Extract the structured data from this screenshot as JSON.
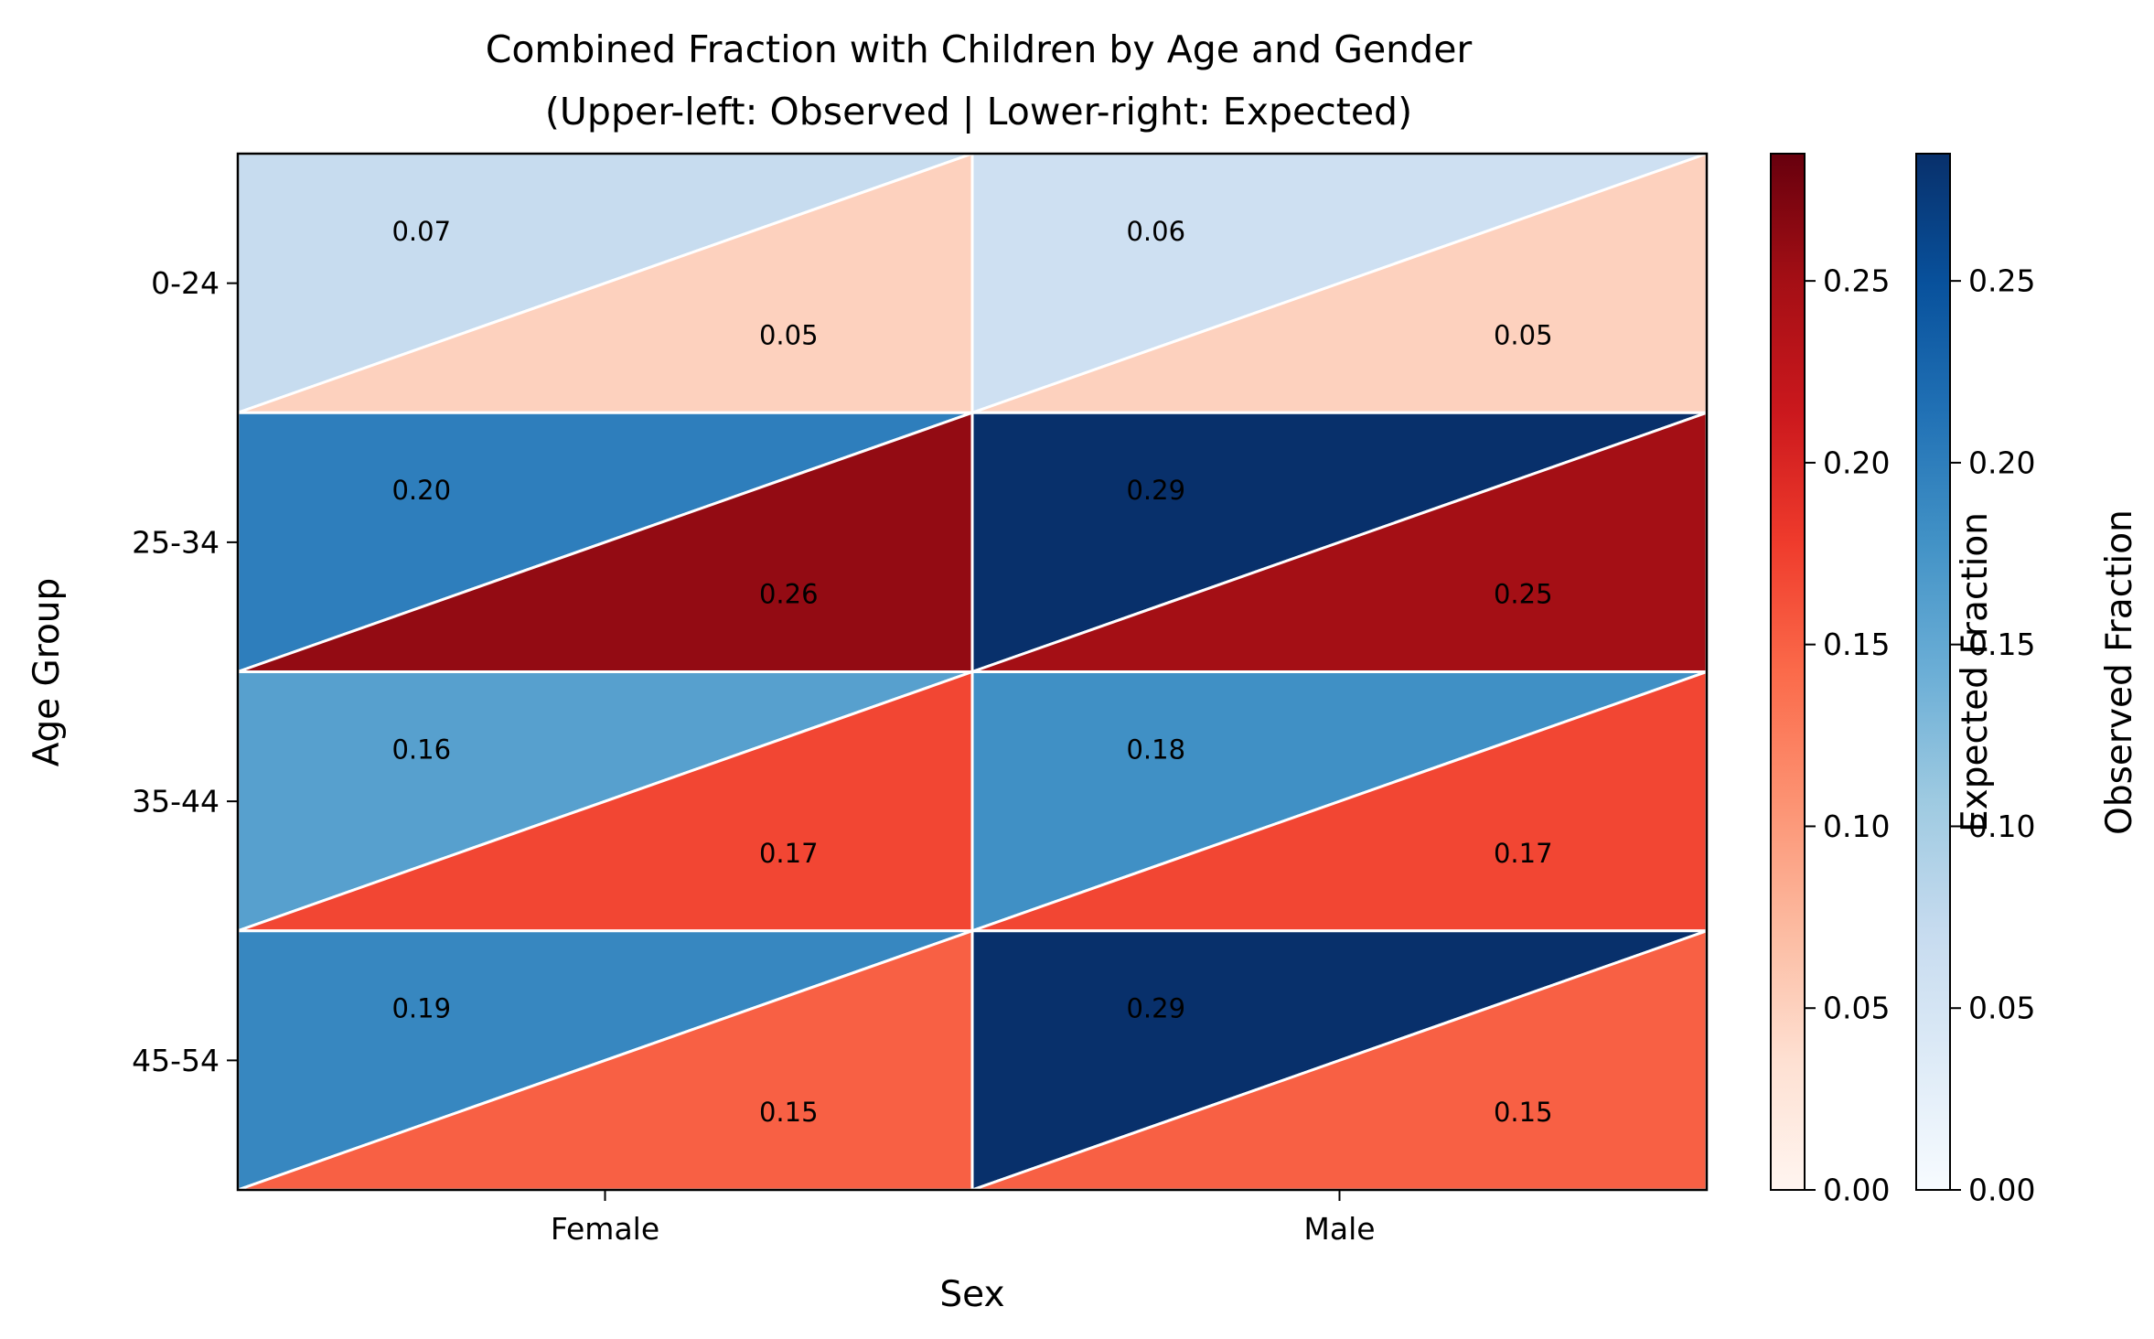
{
  "chart_data": {
    "type": "heatmap",
    "title": "Combined Fraction with Children by Age and Gender",
    "subtitle": "(Upper-left: Observed | Lower-right: Expected)",
    "xlabel": "Sex",
    "ylabel": "Age Group",
    "x_categories": [
      "Female",
      "Male"
    ],
    "y_categories": [
      "0-24",
      "25-34",
      "35-44",
      "45-54"
    ],
    "observed": [
      [
        0.07,
        0.06
      ],
      [
        0.2,
        0.29
      ],
      [
        0.16,
        0.18
      ],
      [
        0.19,
        0.29
      ]
    ],
    "expected": [
      [
        0.05,
        0.05
      ],
      [
        0.26,
        0.25
      ],
      [
        0.17,
        0.17
      ],
      [
        0.15,
        0.15
      ]
    ],
    "observed_labels": [
      [
        "0.07",
        "0.06"
      ],
      [
        "0.20",
        "0.29"
      ],
      [
        "0.16",
        "0.18"
      ],
      [
        "0.19",
        "0.29"
      ]
    ],
    "expected_labels": [
      [
        "0.05",
        "0.05"
      ],
      [
        "0.26",
        "0.25"
      ],
      [
        "0.17",
        "0.17"
      ],
      [
        "0.15",
        "0.15"
      ]
    ],
    "colorbars": [
      {
        "label": "Expected Fraction",
        "colormap": "Reds",
        "range": [
          0,
          0.285
        ],
        "ticks": [
          "0.00",
          "0.05",
          "0.10",
          "0.15",
          "0.20",
          "0.25"
        ]
      },
      {
        "label": "Observed Fraction",
        "colormap": "Blues",
        "range": [
          0,
          0.285
        ],
        "ticks": [
          "0.00",
          "0.05",
          "0.10",
          "0.15",
          "0.20",
          "0.25"
        ]
      }
    ],
    "colors": {
      "divider": "#ffffff",
      "frame": "#000000"
    }
  }
}
